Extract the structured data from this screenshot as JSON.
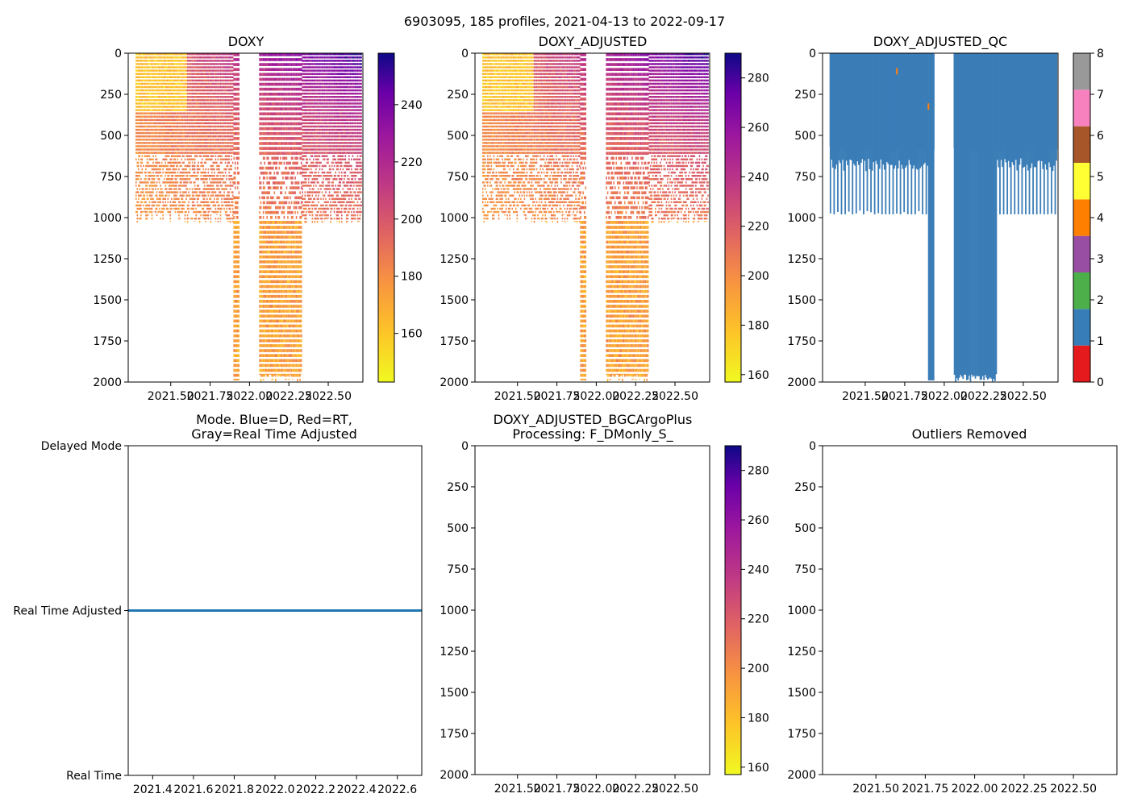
{
  "figure": {
    "suptitle": "6903095, 185 profiles, 2021-04-13 to 2022-09-17"
  },
  "colors": {
    "qc_fill": "#3a7db7",
    "mode_line": "#1f77b4",
    "qc_spot": "#ff7f0e"
  },
  "chart_data": [
    {
      "type": "heatmap",
      "id": "doxy",
      "title": "DOXY",
      "xlim": [
        2021.23,
        2022.72
      ],
      "ylim": [
        2000,
        0
      ],
      "xticks": [
        2021.5,
        2021.75,
        2022.0,
        2022.25,
        2022.5
      ],
      "xtick_labels": [
        "2021.50",
        "2021.75",
        "2022.00",
        "2022.25",
        "2022.50"
      ],
      "yticks": [
        0,
        250,
        500,
        750,
        1000,
        1250,
        1500,
        1750,
        2000
      ],
      "colorbar": {
        "vmin": 143,
        "vmax": 258,
        "ticks": [
          160,
          180,
          200,
          220,
          240
        ],
        "cmap": "plasma_r"
      },
      "approx_field": {
        "value_range": [
          150,
          255
        ],
        "deep_profiles_date_range": [
          2021.98,
          2022.33
        ],
        "gap_date_range": [
          2021.93,
          2022.06
        ],
        "typical_max_depth": 1000
      }
    },
    {
      "type": "heatmap",
      "id": "doxy_adjusted",
      "title": "DOXY_ADJUSTED",
      "xlim": [
        2021.23,
        2022.72
      ],
      "ylim": [
        2000,
        0
      ],
      "xticks": [
        2021.5,
        2021.75,
        2022.0,
        2022.25,
        2022.5
      ],
      "xtick_labels": [
        "2021.50",
        "2021.75",
        "2022.00",
        "2022.25",
        "2022.50"
      ],
      "yticks": [
        0,
        250,
        500,
        750,
        1000,
        1250,
        1500,
        1750,
        2000
      ],
      "colorbar": {
        "vmin": 157,
        "vmax": 290,
        "ticks": [
          160,
          180,
          200,
          220,
          240,
          260,
          280
        ],
        "cmap": "plasma_r"
      },
      "approx_field": {
        "value_range": [
          165,
          285
        ],
        "deep_profiles_date_range": [
          2021.98,
          2022.33
        ],
        "gap_date_range": [
          2021.93,
          2022.06
        ],
        "typical_max_depth": 1000
      }
    },
    {
      "type": "heatmap",
      "id": "doxy_adjusted_qc",
      "title": "DOXY_ADJUSTED_QC",
      "xlim": [
        2021.23,
        2022.72
      ],
      "ylim": [
        2000,
        0
      ],
      "xticks": [
        2021.5,
        2021.75,
        2022.0,
        2022.25,
        2022.5
      ],
      "xtick_labels": [
        "2021.50",
        "2021.75",
        "2022.00",
        "2022.25",
        "2022.50"
      ],
      "yticks": [
        0,
        250,
        500,
        750,
        1000,
        1250,
        1500,
        1750,
        2000
      ],
      "qc_colorbar": {
        "ticks": [
          0,
          1,
          2,
          3,
          4,
          5,
          6,
          7,
          8
        ],
        "segment_colors": [
          "#e41a1c",
          "#377eb8",
          "#4daf4a",
          "#984ea3",
          "#ff7f00",
          "#ffff33",
          "#a65628",
          "#f781bf",
          "#999999"
        ]
      },
      "dominant_flag": 1
    },
    {
      "type": "line",
      "id": "mode",
      "title_lines": [
        "Mode. Blue=D, Red=RT,",
        "Gray=Real Time Adjusted"
      ],
      "xlim": [
        2021.28,
        2022.72
      ],
      "xticks": [
        2021.4,
        2021.6,
        2021.8,
        2022.0,
        2022.2,
        2022.4,
        2022.6
      ],
      "xtick_labels": [
        "2021.4",
        "2021.6",
        "2021.8",
        "2022.0",
        "2022.2",
        "2022.4",
        "2022.6"
      ],
      "y_categories": [
        "Delayed Mode",
        "Real Time Adjusted",
        "Real Time"
      ],
      "series": [
        {
          "name": "mode",
          "x": [
            2021.28,
            2022.72
          ],
          "y_category": "Real Time Adjusted"
        }
      ]
    },
    {
      "type": "heatmap",
      "id": "bgcargoplus",
      "title_lines": [
        "DOXY_ADJUSTED_BGCArgoPlus",
        "Processing: F_DMonly_S_"
      ],
      "xlim": [
        2021.23,
        2022.72
      ],
      "ylim": [
        2000,
        0
      ],
      "xticks": [
        2021.5,
        2021.75,
        2022.0,
        2022.25,
        2022.5
      ],
      "xtick_labels": [
        "2021.50",
        "2021.75",
        "2022.00",
        "2022.25",
        "2022.50"
      ],
      "yticks": [
        0,
        250,
        500,
        750,
        1000,
        1250,
        1500,
        1750,
        2000
      ],
      "colorbar": {
        "vmin": 157,
        "vmax": 290,
        "ticks": [
          160,
          180,
          200,
          220,
          240,
          260,
          280
        ],
        "cmap": "plasma_r"
      },
      "values": []
    },
    {
      "type": "scatter",
      "id": "outliers",
      "title": "Outliers Removed",
      "xlim": [
        2021.23,
        2022.72
      ],
      "ylim": [
        2000,
        0
      ],
      "xticks": [
        2021.5,
        2021.75,
        2022.0,
        2022.25,
        2022.5
      ],
      "xtick_labels": [
        "2021.50",
        "2021.75",
        "2022.00",
        "2022.25",
        "2022.50"
      ],
      "yticks": [
        0,
        250,
        500,
        750,
        1000,
        1250,
        1500,
        1750,
        2000
      ],
      "values": []
    }
  ]
}
